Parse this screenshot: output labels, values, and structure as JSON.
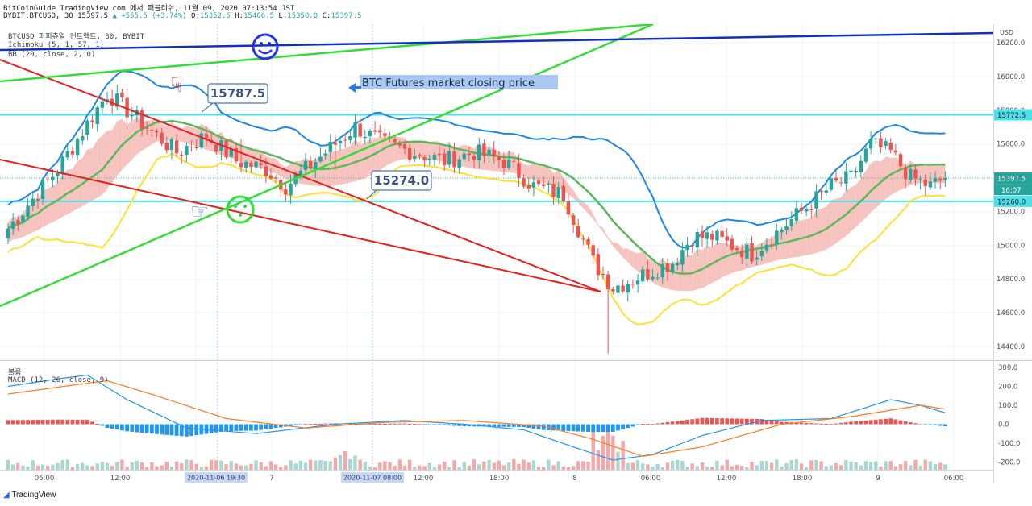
{
  "header": {
    "line1": "BitCoinGuide TradingView.com 에서 퍼블리쉬, 11월 09, 2020 07:13:54 JST",
    "symbol": "BYBIT:BTCUSD, 30",
    "last": "15397.5",
    "change": "+555.5 (+3.74%)",
    "o": "15352.5",
    "h": "15406.5",
    "l": "15350.0",
    "c": "15397.5"
  },
  "overlays": {
    "symbol_line": "BTCUSD 퍼피츄얼 컨트랙트, 30, BYBIT",
    "ichimoku": "Ichimoku (5, 1, 57, 1)",
    "bb": "BB (20, close, 2, 0)",
    "volume": "볼륨",
    "macd": "MACD (12, 26, close, 9)"
  },
  "annotations": {
    "closing_banner": "BTC Futures market closing price",
    "callout_high": "15787.5",
    "callout_low": "15274.0",
    "smiley_icon": "smiley-face",
    "hand_icon_top": "pointing-hand",
    "hand_icon_low": "pointing-hand"
  },
  "price_axis": {
    "currency": "USD",
    "ticks": [
      "16200.0",
      "16000.0",
      "15800.0",
      "15600.0",
      "15400.0",
      "15200.0",
      "15000.0",
      "14800.0",
      "14600.0",
      "14400.0"
    ],
    "tags": {
      "upper_line": "15772.5",
      "current": "15397.5",
      "countdown": "16:07",
      "lower_line": "15260.0"
    }
  },
  "macd_axis": {
    "ticks": [
      "300.0",
      "200.0",
      "100.0",
      "0.0",
      "-100.0",
      "-200.0"
    ]
  },
  "time_axis": {
    "labels": [
      "06:00",
      "12:00",
      "7",
      "12:00",
      "18:00",
      "8",
      "06:00",
      "12:00",
      "18:00",
      "9",
      "06:00"
    ],
    "highlight_1": "2020-11-06  19:30",
    "highlight_2": "2020-11-07  08:00"
  },
  "footer": {
    "brand": "TradingView"
  },
  "colors": {
    "up": "#26a69a",
    "down": "#ef5350",
    "cyan_line": "#4ce0e8",
    "trend_red": "#e82020",
    "trend_green": "#33dd33",
    "trend_blue": "#1530b8",
    "bb_upper": "#1e88e5",
    "bb_basis": "#5cb85c",
    "lower_band": "#ffe033",
    "cloud_red": "#f4b8b4",
    "cloud_blue": "#a8d4f4"
  },
  "chart_data": {
    "type": "candlestick",
    "title": "BTCUSD 퍼피츄얼 컨트랙트, 30, BYBIT",
    "ylim": [
      14350,
      16290
    ],
    "horizontal_levels": [
      15772.5,
      15260.0
    ],
    "close_keypoints": {
      "bars": [
        0,
        10,
        20,
        24,
        28,
        34,
        40,
        46,
        52,
        56,
        64,
        70,
        76,
        82,
        88,
        94,
        100,
        106,
        112,
        118,
        122,
        126,
        130,
        134,
        138,
        142,
        146,
        150,
        154,
        158,
        162,
        166,
        170,
        174,
        178,
        182,
        186,
        189
      ],
      "close": [
        15100,
        15450,
        15900,
        15800,
        15700,
        15550,
        15650,
        15500,
        15450,
        15350,
        15550,
        15700,
        15600,
        15550,
        15500,
        15550,
        15500,
        15350,
        15300,
        14900,
        14750,
        14800,
        14850,
        14900,
        15050,
        15050,
        15000,
        14950,
        15050,
        15150,
        15250,
        15350,
        15400,
        15600,
        15550,
        15400,
        15350,
        15397.5
      ]
    },
    "macd": {
      "ylim": [
        -230,
        320
      ],
      "macd_keypoints": {
        "bars": [
          0,
          10,
          16,
          24,
          36,
          50,
          66,
          80,
          92,
          104,
          114,
          122,
          130,
          140,
          152,
          166,
          178,
          184,
          189
        ],
        "values": [
          200,
          240,
          260,
          130,
          -20,
          -50,
          0,
          20,
          0,
          -30,
          -120,
          -190,
          -160,
          -60,
          20,
          30,
          130,
          100,
          60
        ]
      },
      "signal_keypoints": {
        "bars": [
          0,
          14,
          20,
          30,
          44,
          60,
          76,
          92,
          108,
          118,
          128,
          140,
          156,
          170,
          184,
          189
        ],
        "values": [
          160,
          210,
          230,
          150,
          30,
          -20,
          10,
          20,
          -10,
          -80,
          -170,
          -120,
          0,
          40,
          100,
          80
        ]
      }
    }
  }
}
